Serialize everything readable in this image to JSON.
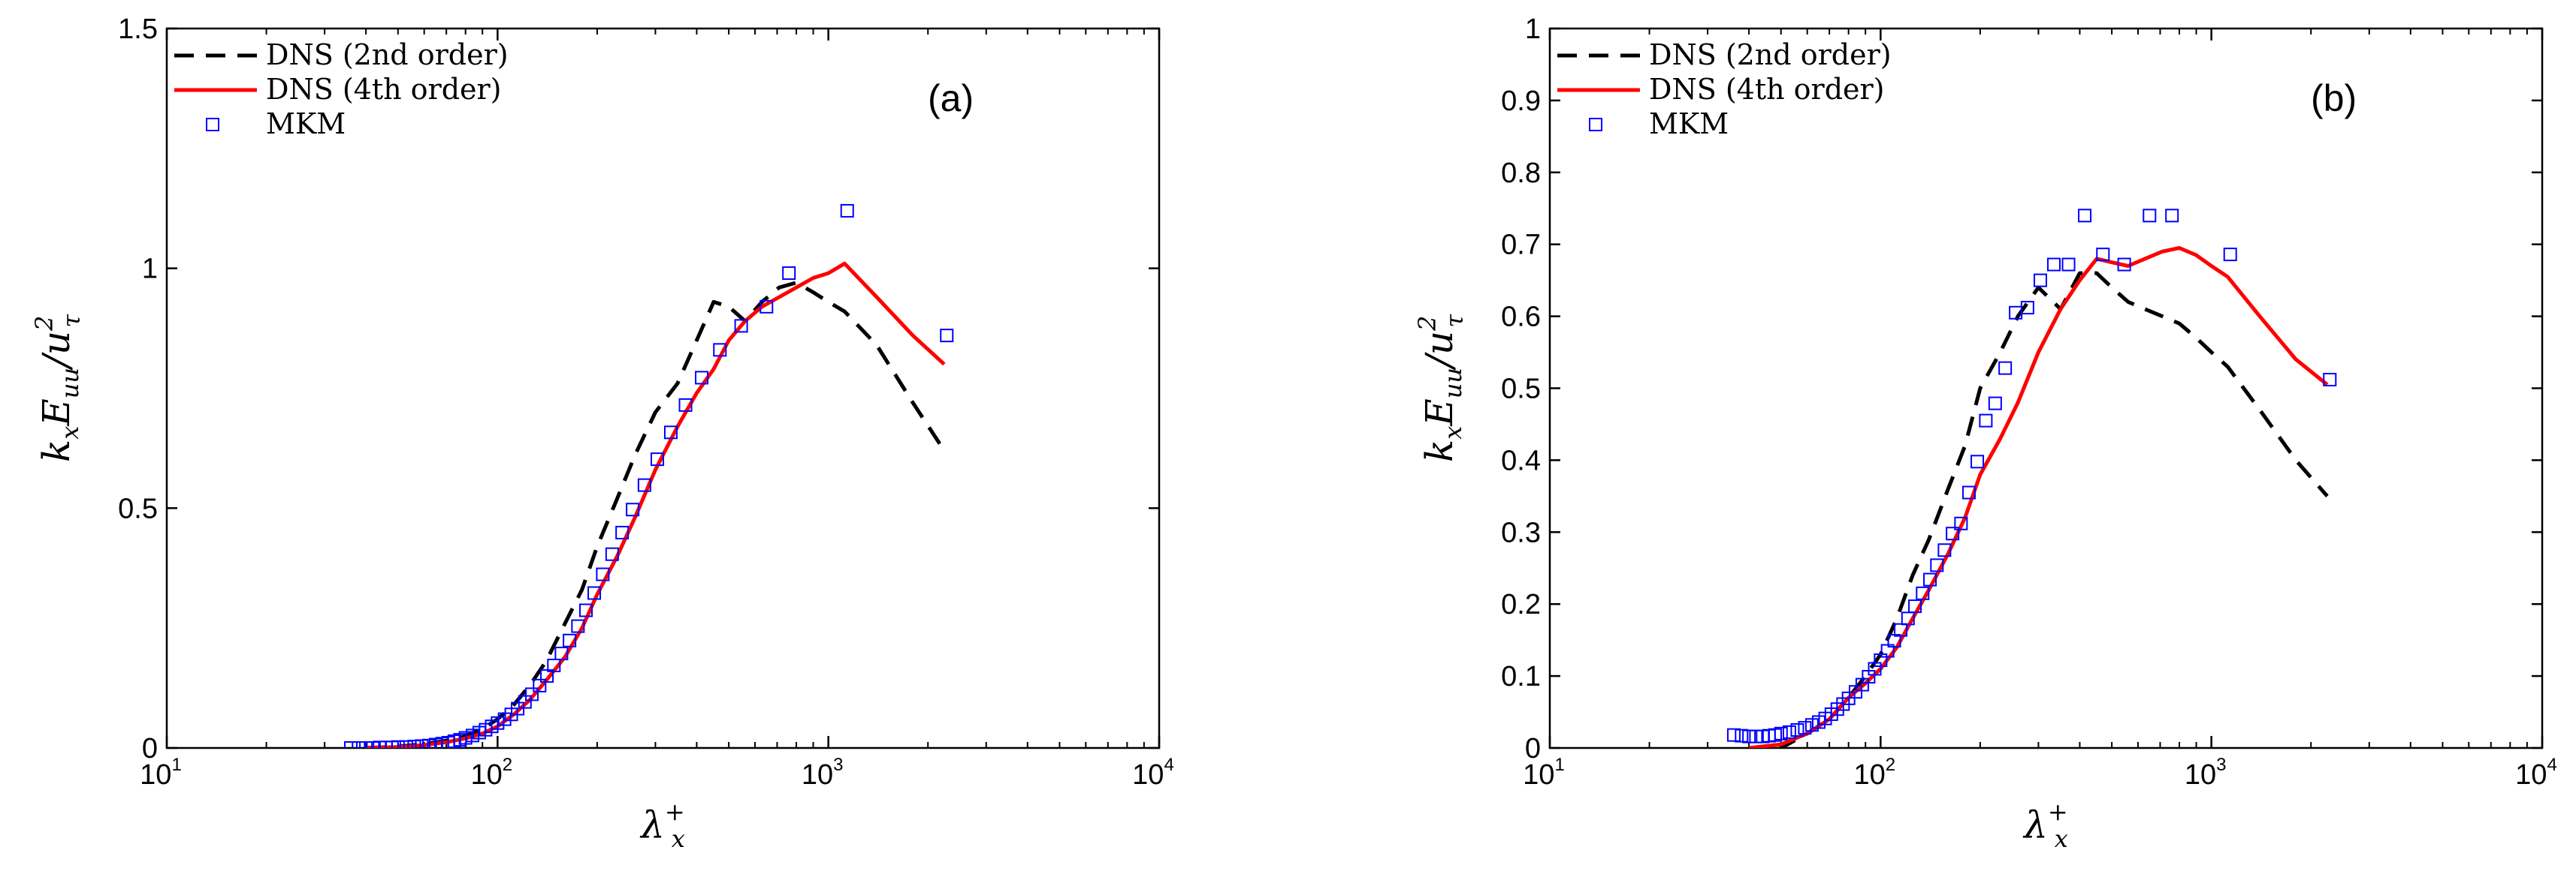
{
  "chart_data": [
    {
      "type": "line",
      "panel_label": "(a)",
      "xscale": "log",
      "xlim": [
        10,
        10000
      ],
      "ylim": [
        0,
        1.5
      ],
      "x_ticks": [
        {
          "base": "10",
          "exp": "1"
        },
        {
          "base": "10",
          "exp": "2"
        },
        {
          "base": "10",
          "exp": "3"
        },
        {
          "base": "10",
          "exp": "4"
        }
      ],
      "y_ticks": [
        "0",
        "0.5",
        "1",
        "1.5"
      ],
      "xlabel": {
        "main": "λ",
        "sup": "+",
        "sub": "x"
      },
      "ylabel": {
        "p1": "k",
        "s1": "x",
        "p2": "E",
        "s2": "uu",
        "p3": "/u",
        "sup": "2",
        "s3": "τ"
      },
      "legend_position": "top-left",
      "series": [
        {
          "name": "DNS (2nd order)",
          "style": "dashed",
          "color": "#000000",
          "x": [
            40,
            50,
            60,
            70,
            80,
            90,
            100,
            112,
            125,
            140,
            160,
            180,
            200,
            230,
            260,
            300,
            350,
            400,
            450,
            500,
            560,
            630,
            710,
            800,
            900,
            1000,
            1120,
            1400,
            1800,
            2240
          ],
          "y": [
            0.0,
            0.003,
            0.008,
            0.015,
            0.025,
            0.04,
            0.06,
            0.09,
            0.13,
            0.18,
            0.26,
            0.33,
            0.42,
            0.52,
            0.61,
            0.7,
            0.76,
            0.85,
            0.93,
            0.92,
            0.89,
            0.93,
            0.96,
            0.97,
            0.95,
            0.93,
            0.91,
            0.84,
            0.72,
            0.62
          ]
        },
        {
          "name": "DNS (4th order)",
          "style": "solid",
          "color": "#ff0000",
          "x": [
            40,
            50,
            60,
            70,
            80,
            90,
            100,
            112,
            125,
            140,
            160,
            180,
            200,
            230,
            260,
            300,
            350,
            400,
            450,
            500,
            560,
            630,
            710,
            800,
            900,
            1000,
            1120,
            1400,
            1800,
            2240
          ],
          "y": [
            0.0,
            0.002,
            0.006,
            0.012,
            0.02,
            0.03,
            0.045,
            0.07,
            0.1,
            0.14,
            0.19,
            0.25,
            0.32,
            0.4,
            0.48,
            0.58,
            0.67,
            0.74,
            0.79,
            0.85,
            0.89,
            0.92,
            0.94,
            0.96,
            0.98,
            0.99,
            1.01,
            0.94,
            0.86,
            0.8
          ]
        },
        {
          "name": "MKM",
          "style": "markers",
          "marker": "square",
          "color": "#0000ff",
          "x": [
            36,
            38,
            40,
            42,
            44,
            46,
            48,
            50,
            53,
            56,
            59,
            62,
            65,
            68,
            71,
            74,
            77,
            80,
            84,
            88,
            92,
            96,
            100,
            105,
            110,
            115,
            121,
            127,
            134,
            141,
            148,
            156,
            165,
            175,
            185,
            196,
            208,
            222,
            238,
            256,
            278,
            304,
            334,
            370,
            414,
            470,
            545,
            650,
            760,
            1140,
            2280
          ],
          "y": [
            0.0,
            0.0,
            0.0,
            0.0,
            0.001,
            0.001,
            0.001,
            0.002,
            0.002,
            0.003,
            0.004,
            0.005,
            0.007,
            0.009,
            0.011,
            0.014,
            0.017,
            0.021,
            0.026,
            0.032,
            0.038,
            0.045,
            0.052,
            0.06,
            0.07,
            0.082,
            0.096,
            0.112,
            0.13,
            0.15,
            0.172,
            0.197,
            0.224,
            0.254,
            0.287,
            0.323,
            0.362,
            0.404,
            0.449,
            0.497,
            0.548,
            0.602,
            0.658,
            0.715,
            0.772,
            0.83,
            0.88,
            0.92,
            0.99,
            1.12,
            0.86
          ]
        }
      ]
    },
    {
      "type": "line",
      "panel_label": "(b)",
      "xscale": "log",
      "xlim": [
        10,
        10000
      ],
      "ylim": [
        0,
        1
      ],
      "x_ticks": [
        {
          "base": "10",
          "exp": "1"
        },
        {
          "base": "10",
          "exp": "2"
        },
        {
          "base": "10",
          "exp": "3"
        },
        {
          "base": "10",
          "exp": "4"
        }
      ],
      "y_ticks": [
        "0",
        "0.1",
        "0.2",
        "0.3",
        "0.4",
        "0.5",
        "0.6",
        "0.7",
        "0.8",
        "0.9",
        "1"
      ],
      "xlabel": {
        "main": "λ",
        "sup": "+",
        "sub": "x"
      },
      "ylabel": {
        "p1": "k",
        "s1": "x",
        "p2": "E",
        "s2": "uu",
        "p3": "/u",
        "sup": "2",
        "s3": "τ"
      },
      "legend_position": "top-left",
      "series": [
        {
          "name": "DNS (2nd order)",
          "style": "dashed",
          "color": "#000000",
          "x": [
            40,
            50,
            60,
            70,
            80,
            90,
            100,
            112,
            125,
            140,
            160,
            180,
            200,
            230,
            260,
            300,
            350,
            400,
            450,
            500,
            560,
            630,
            710,
            800,
            900,
            1000,
            1120,
            1400,
            1800,
            2240
          ],
          "y": [
            -0.02,
            0.0,
            0.02,
            0.04,
            0.07,
            0.1,
            0.13,
            0.18,
            0.24,
            0.29,
            0.36,
            0.42,
            0.5,
            0.55,
            0.6,
            0.64,
            0.61,
            0.66,
            0.66,
            0.64,
            0.62,
            0.61,
            0.6,
            0.59,
            0.57,
            0.55,
            0.53,
            0.47,
            0.4,
            0.35
          ]
        },
        {
          "name": "DNS (4th order)",
          "style": "solid",
          "color": "#ff0000",
          "x": [
            40,
            50,
            60,
            70,
            80,
            90,
            100,
            112,
            125,
            140,
            160,
            180,
            200,
            230,
            260,
            300,
            350,
            400,
            450,
            500,
            560,
            630,
            710,
            800,
            900,
            1000,
            1120,
            1400,
            1800,
            2240
          ],
          "y": [
            0.0,
            0.005,
            0.02,
            0.04,
            0.07,
            0.09,
            0.11,
            0.14,
            0.18,
            0.22,
            0.27,
            0.32,
            0.38,
            0.43,
            0.48,
            0.55,
            0.61,
            0.65,
            0.68,
            0.675,
            0.67,
            0.68,
            0.69,
            0.695,
            0.685,
            0.67,
            0.655,
            0.6,
            0.54,
            0.505
          ]
        },
        {
          "name": "MKM",
          "style": "markers",
          "marker": "square",
          "color": "#0000ff",
          "x": [
            36,
            38,
            40,
            42,
            44,
            46,
            48,
            50,
            53,
            56,
            59,
            62,
            65,
            68,
            71,
            74,
            77,
            80,
            84,
            88,
            92,
            96,
            100,
            105,
            110,
            115,
            121,
            127,
            134,
            141,
            148,
            156,
            165,
            175,
            185,
            196,
            208,
            222,
            238,
            256,
            278,
            304,
            334,
            370,
            414,
            470,
            545,
            650,
            760,
            1140,
            2280
          ],
          "y": [
            0.018,
            0.017,
            0.016,
            0.016,
            0.016,
            0.017,
            0.018,
            0.02,
            0.022,
            0.025,
            0.028,
            0.032,
            0.036,
            0.041,
            0.047,
            0.054,
            0.061,
            0.069,
            0.078,
            0.088,
            0.099,
            0.11,
            0.122,
            0.135,
            0.149,
            0.164,
            0.18,
            0.197,
            0.215,
            0.234,
            0.254,
            0.275,
            0.298,
            0.312,
            0.355,
            0.398,
            0.455,
            0.479,
            0.528,
            0.605,
            0.612,
            0.65,
            0.672,
            0.672,
            0.74,
            0.686,
            0.672,
            0.74,
            0.74,
            0.686,
            0.512
          ]
        }
      ]
    }
  ]
}
